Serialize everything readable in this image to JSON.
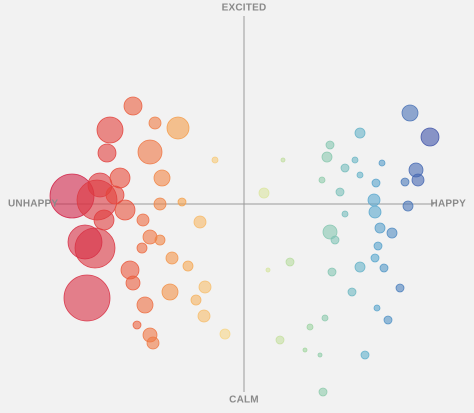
{
  "chart_data": {
    "type": "scatter",
    "labels": {
      "top": "EXCITED",
      "bottom": "CALM",
      "left": "UNHAPPY",
      "right": "HAPPY"
    },
    "xlim": [
      -190,
      190
    ],
    "ylim": [
      -190,
      190
    ],
    "color_scale": [
      "#c8174f",
      "#e6473a",
      "#f5a04b",
      "#f7eda0",
      "#9fd5a0",
      "#5aacd0",
      "#3e4ea6"
    ],
    "opacity": 0.6,
    "x": [
      -172,
      -157,
      -149,
      -159,
      -147,
      -134,
      -137,
      -124,
      -119,
      -140,
      -144,
      -129,
      -111,
      -89,
      -66,
      -94,
      -82,
      -84,
      -101,
      -94,
      -102,
      -84,
      -114,
      -111,
      -72,
      -56,
      -39,
      -74,
      -99,
      -48,
      -40,
      -94,
      -91,
      -19,
      -107,
      -44,
      -62,
      -29,
      20,
      46,
      24,
      36,
      66,
      39,
      76,
      83,
      86,
      116,
      101,
      78,
      111,
      96,
      116,
      101,
      86,
      91,
      88,
      116,
      108,
      121,
      79,
      81,
      61,
      130,
      131,
      132,
      136,
      148,
      134,
      131,
      140,
      156,
      144,
      133,
      138,
      166,
      186,
      172,
      174,
      161,
      164
    ],
    "values": [
      8,
      -94,
      -44,
      -38,
      4,
      74,
      51,
      26,
      -6,
      -16,
      19,
      9,
      98,
      81,
      76,
      52,
      26,
      0,
      -16,
      -33,
      -44,
      -36,
      -66,
      -79,
      -54,
      -62,
      -83,
      -88,
      -101,
      -96,
      -112,
      -131,
      -139,
      -130,
      -121,
      -18,
      2,
      44,
      11,
      -58,
      -66,
      -136,
      -123,
      44,
      -151,
      47,
      59,
      71,
      36,
      24,
      44,
      12,
      29,
      -10,
      -28,
      -36,
      -68,
      -63,
      -88,
      -151,
      -188,
      -114,
      -146,
      4,
      -8,
      21,
      -24,
      -29,
      -42,
      -54,
      -64,
      -84,
      -116,
      -104,
      41,
      91,
      67,
      34,
      24,
      22,
      -2
    ],
    "sizes": [
      22,
      23,
      20,
      17,
      20,
      13,
      9,
      10,
      10,
      10,
      12,
      9,
      9,
      6,
      11,
      12,
      8,
      6,
      6,
      7,
      5,
      5,
      9,
      7,
      6,
      5,
      6,
      8,
      8,
      5,
      6,
      7,
      6,
      5,
      4,
      6,
      4,
      3,
      5,
      4,
      2,
      4,
      3,
      2,
      2,
      5,
      4,
      5,
      4,
      3,
      3,
      4,
      3,
      3,
      7,
      4,
      4,
      5,
      4,
      4,
      4,
      3,
      2,
      6,
      6,
      4,
      5,
      5,
      4,
      4,
      4,
      4,
      4,
      3,
      3,
      8,
      9,
      7,
      6,
      4,
      5
    ]
  }
}
